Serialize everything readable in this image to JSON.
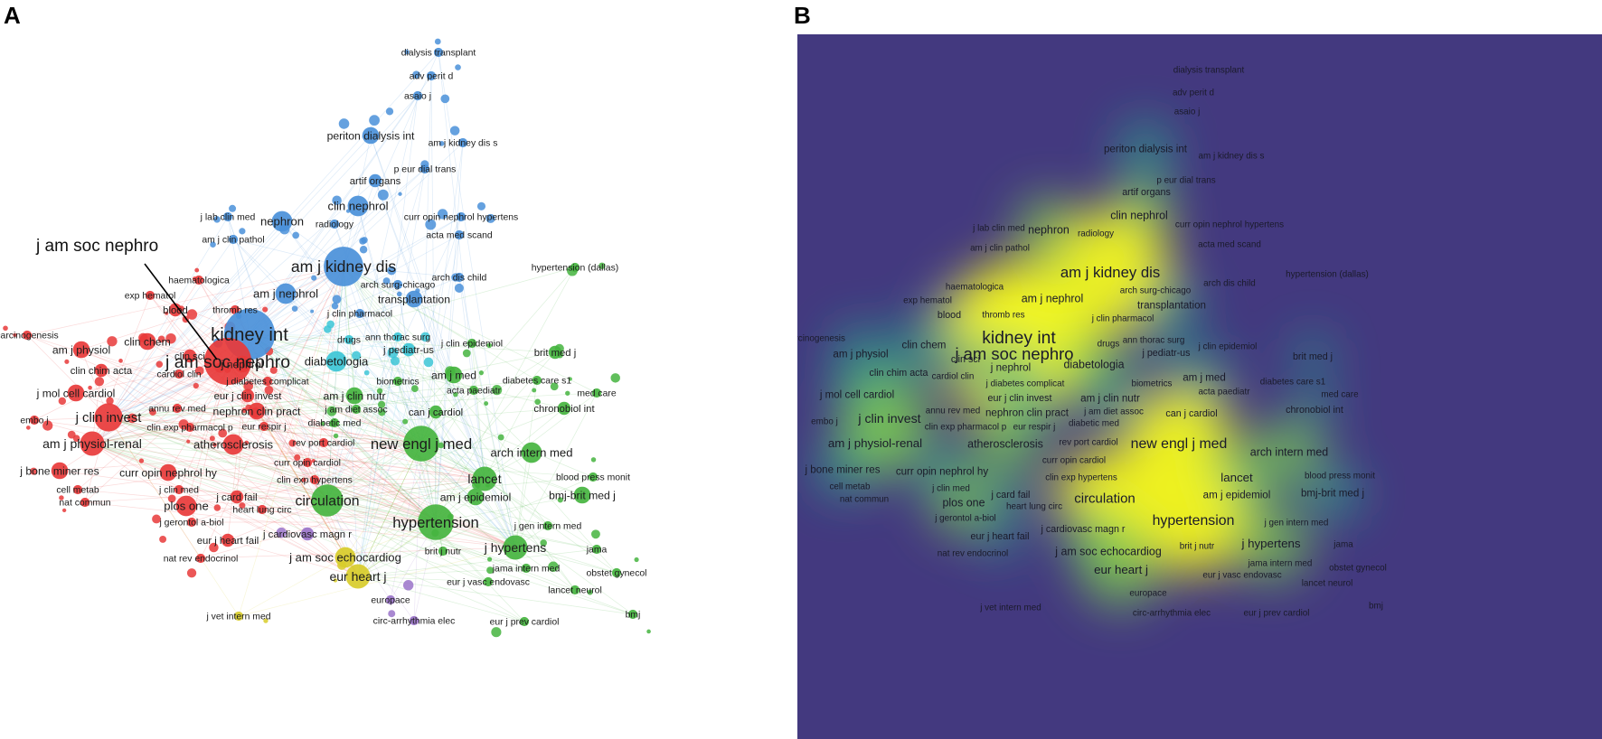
{
  "panels": {
    "a": {
      "letter": "A"
    },
    "b": {
      "letter": "B"
    }
  },
  "callout": {
    "label": "j am soc nephro"
  },
  "colors": {
    "cluster_red": "#e8393a",
    "cluster_blue": "#4a90d9",
    "cluster_green": "#45b43f",
    "cluster_cyan": "#3cc6d6",
    "cluster_yellow": "#d8cc2a",
    "cluster_purple": "#9a73c9",
    "density_background": "#43397f",
    "density_peak": "#f4f81e"
  },
  "nodes": [
    {
      "id": "dialysis-transplant",
      "label": "dialysis transplant",
      "cluster": "blue",
      "size": 1
    },
    {
      "id": "adv-perit-d",
      "label": "adv perit d",
      "cluster": "blue",
      "size": 1
    },
    {
      "id": "asaio-j",
      "label": "asaio j",
      "cluster": "blue",
      "size": 1
    },
    {
      "id": "periton-dialysis-int",
      "label": "periton dialysis int",
      "cluster": "blue",
      "size": 3
    },
    {
      "id": "am-j-kidney-dis-s",
      "label": "am j kidney dis s",
      "cluster": "blue",
      "size": 1
    },
    {
      "id": "p-eur-dial-trans",
      "label": "p eur dial trans",
      "cluster": "blue",
      "size": 1
    },
    {
      "id": "artif-organs",
      "label": "artif organs",
      "cluster": "blue",
      "size": 2
    },
    {
      "id": "clin-nephrol",
      "label": "clin nephrol",
      "cluster": "blue",
      "size": 4
    },
    {
      "id": "j-lab-clin-med",
      "label": "j lab clin med",
      "cluster": "blue",
      "size": 1
    },
    {
      "id": "nephron",
      "label": "nephron",
      "cluster": "blue",
      "size": 4
    },
    {
      "id": "radiology",
      "label": "radiology",
      "cluster": "blue",
      "size": 1
    },
    {
      "id": "curr-opin-nephrol-hypertens",
      "label": "curr opin nephrol hypertens",
      "cluster": "blue",
      "size": 1
    },
    {
      "id": "am-j-clin-pathol",
      "label": "am j clin pathol",
      "cluster": "blue",
      "size": 1
    },
    {
      "id": "acta-med-scand",
      "label": "acta med scand",
      "cluster": "blue",
      "size": 1
    },
    {
      "id": "am-j-kidney-dis",
      "label": "am j kidney dis",
      "cluster": "blue",
      "size": 9
    },
    {
      "id": "arch-dis-child",
      "label": "arch dis child",
      "cluster": "blue",
      "size": 1
    },
    {
      "id": "hypertension-dallas",
      "label": "hypertension (dallas)",
      "cluster": "green",
      "size": 1
    },
    {
      "id": "haematologica",
      "label": "haematologica",
      "cluster": "red",
      "size": 1
    },
    {
      "id": "am-j-nephrol",
      "label": "am j nephrol",
      "cluster": "blue",
      "size": 4
    },
    {
      "id": "arch-surg-chicago",
      "label": "arch surg-chicago",
      "cluster": "blue",
      "size": 1
    },
    {
      "id": "exp-hematol",
      "label": "exp hematol",
      "cluster": "red",
      "size": 1
    },
    {
      "id": "transplantation",
      "label": "transplantation",
      "cluster": "blue",
      "size": 3
    },
    {
      "id": "blood",
      "label": "blood",
      "cluster": "red",
      "size": 2
    },
    {
      "id": "thromb-res",
      "label": "thromb res",
      "cluster": "red",
      "size": 1
    },
    {
      "id": "j-clin-pharmacol",
      "label": "j clin pharmacol",
      "cluster": "blue",
      "size": 1
    },
    {
      "id": "kidney-int",
      "label": "kidney int",
      "cluster": "blue",
      "size": 12
    },
    {
      "id": "j-am-soc-nephro",
      "label": "j am soc nephro",
      "cluster": "red",
      "size": 11
    },
    {
      "id": "carcinogenesis",
      "label": "carcinogenesis",
      "cluster": "red",
      "size": 1
    },
    {
      "id": "drugs",
      "label": "drugs",
      "cluster": "cyan",
      "size": 1
    },
    {
      "id": "ann-thorac-surg",
      "label": "ann thorac surg",
      "cluster": "cyan",
      "size": 1
    },
    {
      "id": "am-j-physiol",
      "label": "am j physiol",
      "cluster": "red",
      "size": 3
    },
    {
      "id": "clin-chem",
      "label": "clin chem",
      "cluster": "red",
      "size": 3
    },
    {
      "id": "j-pediatr-us",
      "label": "j pediatr-us",
      "cluster": "cyan",
      "size": 2
    },
    {
      "id": "j-clin-epidemiol",
      "label": "j clin epidemiol",
      "cluster": "green",
      "size": 1
    },
    {
      "id": "clin-sci",
      "label": "clin sci",
      "cluster": "red",
      "size": 2
    },
    {
      "id": "brit-med-j",
      "label": "brit med j",
      "cluster": "green",
      "size": 2
    },
    {
      "id": "diabetologia",
      "label": "diabetologia",
      "cluster": "cyan",
      "size": 4
    },
    {
      "id": "j-nephrol",
      "label": "j nephrol",
      "cluster": "red",
      "size": 3
    },
    {
      "id": "clin-chim-acta",
      "label": "clin chim acta",
      "cluster": "red",
      "size": 2
    },
    {
      "id": "cardiol-clin",
      "label": "cardiol clin",
      "cluster": "red",
      "size": 1
    },
    {
      "id": "j-diabetes-complicat",
      "label": "j diabetes complicat",
      "cluster": "red",
      "size": 1
    },
    {
      "id": "am-j-med",
      "label": "am j med",
      "cluster": "green",
      "size": 3
    },
    {
      "id": "diabetes-care-s1",
      "label": "diabetes care s1",
      "cluster": "green",
      "size": 1
    },
    {
      "id": "biometrics",
      "label": "biometrics",
      "cluster": "green",
      "size": 1
    },
    {
      "id": "acta-paediatr",
      "label": "acta paediatr",
      "cluster": "green",
      "size": 1
    },
    {
      "id": "med-care",
      "label": "med care",
      "cluster": "green",
      "size": 1
    },
    {
      "id": "j-mol-cell-cardiol",
      "label": "j mol cell cardiol",
      "cluster": "red",
      "size": 3
    },
    {
      "id": "eur-j-clin-invest",
      "label": "eur j clin invest",
      "cluster": "red",
      "size": 2
    },
    {
      "id": "am-j-clin-nutr",
      "label": "am j clin nutr",
      "cluster": "green",
      "size": 3
    },
    {
      "id": "annu-rev-med",
      "label": "annu rev med",
      "cluster": "red",
      "size": 1
    },
    {
      "id": "nephron-clin-pract",
      "label": "nephron clin pract",
      "cluster": "red",
      "size": 3
    },
    {
      "id": "j-am-diet-assoc",
      "label": "j am diet assoc",
      "cluster": "green",
      "size": 1
    },
    {
      "id": "can-j-cardiol",
      "label": "can j cardiol",
      "cluster": "green",
      "size": 2
    },
    {
      "id": "chronobiol-int",
      "label": "chronobiol int",
      "cluster": "green",
      "size": 2
    },
    {
      "id": "embo-j",
      "label": "embo j",
      "cluster": "red",
      "size": 1
    },
    {
      "id": "j-clin-invest",
      "label": "j clin invest",
      "cluster": "red",
      "size": 6
    },
    {
      "id": "clin-exp-pharmacol-p",
      "label": "clin exp pharmacol p",
      "cluster": "red",
      "size": 1
    },
    {
      "id": "eur-respir-j",
      "label": "eur respir j",
      "cluster": "red",
      "size": 1
    },
    {
      "id": "diabetic-med",
      "label": "diabetic med",
      "cluster": "green",
      "size": 1
    },
    {
      "id": "am-j-physiol-renal",
      "label": "am j physiol-renal",
      "cluster": "red",
      "size": 5
    },
    {
      "id": "atherosclerosis",
      "label": "atherosclerosis",
      "cluster": "red",
      "size": 4
    },
    {
      "id": "rev-port-cardiol",
      "label": "rev port cardiol",
      "cluster": "red",
      "size": 1
    },
    {
      "id": "new-engl-j-med",
      "label": "new engl j med",
      "cluster": "green",
      "size": 8
    },
    {
      "id": "arch-intern-med",
      "label": "arch intern med",
      "cluster": "green",
      "size": 4
    },
    {
      "id": "j-bone-miner-res",
      "label": "j bone miner res",
      "cluster": "red",
      "size": 3
    },
    {
      "id": "curr-opin-nephrol-hy",
      "label": "curr opin nephrol hy",
      "cluster": "red",
      "size": 3
    },
    {
      "id": "curr-opin-cardiol",
      "label": "curr opin cardiol",
      "cluster": "red",
      "size": 1
    },
    {
      "id": "cell-metab",
      "label": "cell metab",
      "cluster": "red",
      "size": 1
    },
    {
      "id": "j-clin-med",
      "label": "j clin med",
      "cluster": "red",
      "size": 1
    },
    {
      "id": "clin-exp-hypertens",
      "label": "clin exp hypertens",
      "cluster": "red",
      "size": 1
    },
    {
      "id": "lancet",
      "label": "lancet",
      "cluster": "green",
      "size": 5
    },
    {
      "id": "blood-press-monit",
      "label": "blood press monit",
      "cluster": "green",
      "size": 1
    },
    {
      "id": "nat-commun",
      "label": "nat commun",
      "cluster": "red",
      "size": 1
    },
    {
      "id": "plos-one",
      "label": "plos one",
      "cluster": "red",
      "size": 4
    },
    {
      "id": "j-card-fail",
      "label": "j card fail",
      "cluster": "red",
      "size": 2
    },
    {
      "id": "circulation",
      "label": "circulation",
      "cluster": "green",
      "size": 7
    },
    {
      "id": "bmj-brit-med-j",
      "label": "bmj-brit med j",
      "cluster": "green",
      "size": 3
    },
    {
      "id": "am-j-epidemiol",
      "label": "am j epidemiol",
      "cluster": "green",
      "size": 3
    },
    {
      "id": "heart-lung-circ",
      "label": "heart lung circ",
      "cluster": "red",
      "size": 1
    },
    {
      "id": "j-gerontol-a-biol",
      "label": "j gerontol a-biol",
      "cluster": "red",
      "size": 1
    },
    {
      "id": "hypertension",
      "label": "hypertension",
      "cluster": "green",
      "size": 8
    },
    {
      "id": "j-gen-intern-med",
      "label": "j gen intern med",
      "cluster": "green",
      "size": 1
    },
    {
      "id": "j-cardiovasc-magn-r",
      "label": "j cardiovasc magn r",
      "cluster": "purple",
      "size": 2
    },
    {
      "id": "eur-j-heart-fail",
      "label": "eur j heart fail",
      "cluster": "red",
      "size": 2
    },
    {
      "id": "j-hypertens",
      "label": "j hypertens",
      "cluster": "green",
      "size": 5
    },
    {
      "id": "brit-j-nutr",
      "label": "brit j nutr",
      "cluster": "green",
      "size": 1
    },
    {
      "id": "jama",
      "label": "jama",
      "cluster": "green",
      "size": 1
    },
    {
      "id": "nat-rev-endocrinol",
      "label": "nat rev endocrinol",
      "cluster": "red",
      "size": 1
    },
    {
      "id": "j-am-soc-echocardiog",
      "label": "j am soc echocardiog",
      "cluster": "yellow",
      "size": 4
    },
    {
      "id": "jama-intern-med",
      "label": "jama intern med",
      "cluster": "green",
      "size": 1
    },
    {
      "id": "obstet-gynecol",
      "label": "obstet gynecol",
      "cluster": "green",
      "size": 1
    },
    {
      "id": "eur-heart-j",
      "label": "eur heart j",
      "cluster": "yellow",
      "size": 5
    },
    {
      "id": "eur-j-vasc-endovasc",
      "label": "eur j vasc endovasc",
      "cluster": "green",
      "size": 1
    },
    {
      "id": "lancet-neurol",
      "label": "lancet neurol",
      "cluster": "green",
      "size": 1
    },
    {
      "id": "europace",
      "label": "europace",
      "cluster": "purple",
      "size": 1
    },
    {
      "id": "bmj",
      "label": "bmj",
      "cluster": "green",
      "size": 1
    },
    {
      "id": "j-vet-intern-med",
      "label": "j vet intern med",
      "cluster": "yellow",
      "size": 1
    },
    {
      "id": "circ-arrhythmia-elec",
      "label": "circ-arrhythmia elec",
      "cluster": "purple",
      "size": 1
    },
    {
      "id": "eur-j-prev-cardiol",
      "label": "eur j prev cardiol",
      "cluster": "green",
      "size": 1
    }
  ]
}
